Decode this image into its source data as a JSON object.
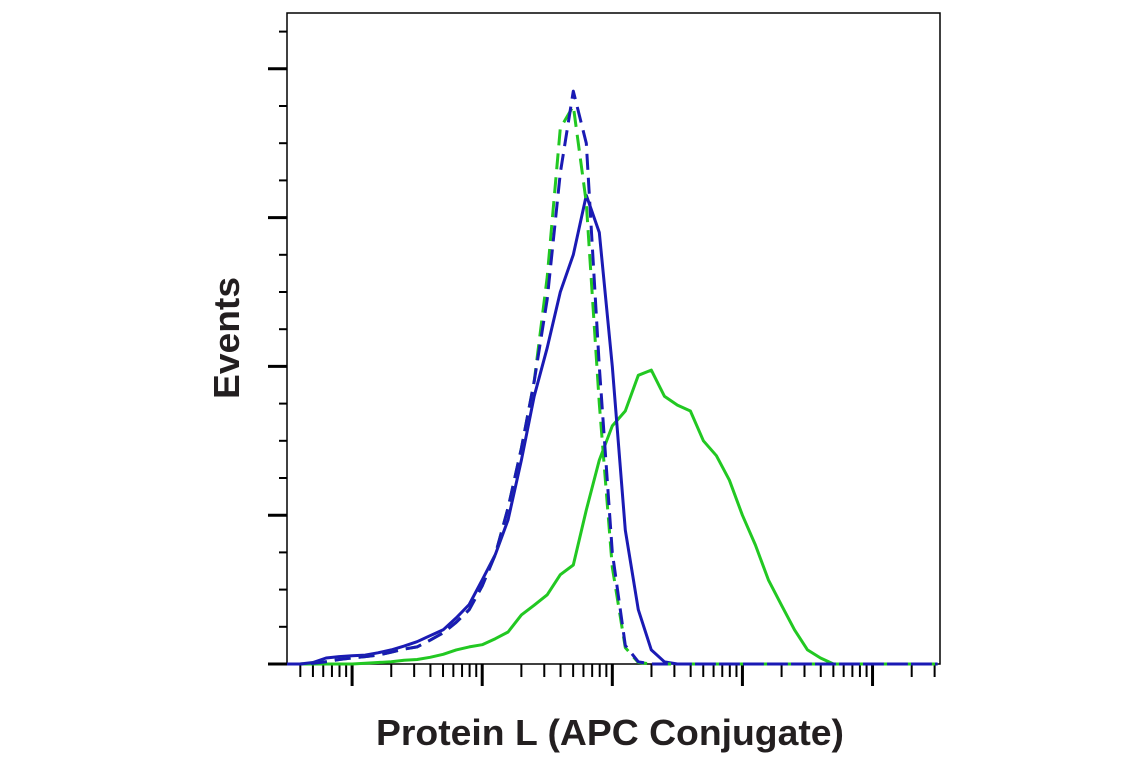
{
  "chart_data": {
    "type": "histogram-overlay",
    "x_label": "Protein L (APC Conjugate)",
    "y_label": "Events",
    "x_scale": "log",
    "x": [
      3.16,
      3.98,
      5.01,
      6.31,
      7.94,
      10,
      12.6,
      15.8,
      20,
      25.1,
      31.6,
      39.8,
      50.1,
      63.1,
      79.4,
      100,
      126,
      158,
      200,
      251,
      316,
      398,
      501,
      631,
      794,
      1000,
      1259,
      1585,
      1995,
      2512,
      3162,
      3981,
      5012,
      6310,
      7943,
      10000,
      12589,
      15849,
      19953,
      25119,
      31623,
      39811,
      50119,
      63096,
      79433,
      100000,
      125893,
      158489,
      199526,
      251189,
      316228
    ],
    "xlim": [
      3.16,
      330000
    ],
    "xticks": [
      10,
      100,
      1000,
      10000,
      100000
    ],
    "xminor_ticks": [
      4,
      5,
      6,
      7,
      8,
      9,
      20,
      30,
      40,
      50,
      60,
      70,
      80,
      90,
      200,
      300,
      400,
      500,
      600,
      700,
      800,
      900,
      2000,
      3000,
      4000,
      5000,
      6000,
      7000,
      8000,
      9000,
      20000,
      30000,
      40000,
      50000,
      60000,
      70000,
      80000,
      90000,
      200000,
      300000
    ],
    "ylim": [
      0,
      87.5
    ],
    "yticks": [
      0,
      20,
      40,
      60,
      80
    ],
    "yminor_ticks": [
      5,
      10,
      15,
      25,
      30,
      35,
      45,
      50,
      55,
      65,
      70,
      75,
      85
    ],
    "series": [
      {
        "color": "#22c822",
        "dashed": false,
        "values": [
          0,
          0,
          0,
          0,
          0,
          0,
          0.1,
          0.2,
          0.3,
          0.5,
          0.6,
          0.9,
          1.3,
          1.9,
          2.3,
          2.6,
          3.4,
          4.3,
          6.6,
          7.9,
          9.3,
          12,
          13.3,
          20.7,
          27.4,
          32,
          34,
          38.8,
          39.5,
          36,
          34.8,
          34,
          30,
          28,
          24.7,
          20,
          16,
          11.3,
          7.9,
          4.6,
          1.9,
          0.8,
          0,
          0,
          0,
          0,
          0,
          0,
          0,
          0,
          0
        ]
      },
      {
        "color": "#1a1ab4",
        "dashed": false,
        "values": [
          0,
          0,
          0.2,
          0.8,
          1,
          1.1,
          1.2,
          1.5,
          1.9,
          2.4,
          3,
          3.8,
          4.6,
          6.2,
          8,
          11.3,
          14.7,
          19.4,
          27.4,
          36,
          42.5,
          50,
          55,
          63,
          58,
          40,
          18,
          7.3,
          1.9,
          0.3,
          0,
          0,
          0,
          0,
          0,
          0,
          0,
          0,
          0,
          0,
          0,
          0,
          0,
          0,
          0,
          0,
          0,
          0,
          0,
          0,
          0
        ]
      },
      {
        "color": "#22c822",
        "dashed": true,
        "values": [
          0,
          0,
          0.1,
          0.3,
          0.6,
          0.8,
          1,
          1.2,
          1.6,
          2,
          2.3,
          3.2,
          4.2,
          5.6,
          7.3,
          10.5,
          14.7,
          21,
          29,
          38,
          52,
          72,
          75,
          62,
          35,
          13,
          2.2,
          0.2,
          0,
          0,
          0,
          0,
          0,
          0,
          0,
          0,
          0,
          0,
          0,
          0,
          0,
          0,
          0,
          0,
          0,
          0,
          0,
          0,
          0,
          0,
          0
        ]
      },
      {
        "color": "#1a1ab4",
        "dashed": true,
        "values": [
          0,
          0,
          0.1,
          0.3,
          0.6,
          0.8,
          1,
          1.2,
          1.6,
          2,
          2.3,
          3.2,
          4.2,
          5.6,
          7.3,
          10.5,
          14.7,
          21,
          29,
          38,
          49,
          66,
          77,
          70,
          40,
          15,
          2.5,
          0.3,
          0,
          0,
          0,
          0,
          0,
          0,
          0,
          0,
          0,
          0,
          0,
          0,
          0,
          0,
          0,
          0,
          0,
          0,
          0,
          0,
          0,
          0,
          0
        ]
      }
    ]
  }
}
